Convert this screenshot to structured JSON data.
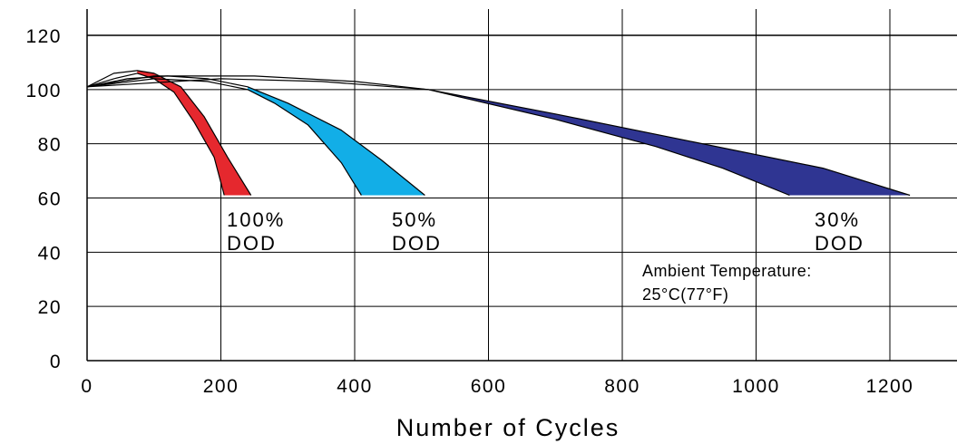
{
  "chart_data": {
    "type": "area",
    "xlabel": "Number of Cycles",
    "ylabel": "",
    "xlim": [
      0,
      1300
    ],
    "ylim": [
      0,
      120
    ],
    "x_ticks": [
      "0",
      "200",
      "400",
      "600",
      "800",
      "1000",
      "1200"
    ],
    "y_ticks": [
      "0",
      "20",
      "40",
      "60",
      "80",
      "100",
      "120"
    ],
    "grid": true,
    "series": [
      {
        "name": "100% DOD",
        "label_lines": [
          "100%",
          "DOD"
        ],
        "color": "#e5282e",
        "upper": [
          [
            0,
            101
          ],
          [
            40,
            106
          ],
          [
            75,
            107
          ],
          [
            100,
            106
          ],
          [
            140,
            101
          ],
          [
            175,
            90
          ],
          [
            210,
            75
          ],
          [
            245,
            61
          ]
        ],
        "lower": [
          [
            0,
            101
          ],
          [
            40,
            104
          ],
          [
            75,
            106
          ],
          [
            100,
            104
          ],
          [
            130,
            99
          ],
          [
            160,
            88
          ],
          [
            190,
            75
          ],
          [
            205,
            61
          ]
        ],
        "fill_from_x": 75,
        "bottom": [
          205,
          275
        ]
      },
      {
        "name": "50% DOD",
        "label_lines": [
          "50%",
          "DOD"
        ],
        "color": "#12aee7",
        "upper": [
          [
            0,
            101
          ],
          [
            60,
            104
          ],
          [
            120,
            105
          ],
          [
            180,
            104
          ],
          [
            240,
            101
          ],
          [
            300,
            95
          ],
          [
            380,
            85
          ],
          [
            440,
            74
          ],
          [
            505,
            61
          ]
        ],
        "lower": [
          [
            0,
            101
          ],
          [
            100,
            104
          ],
          [
            180,
            103
          ],
          [
            240,
            100
          ],
          [
            280,
            95
          ],
          [
            330,
            87
          ],
          [
            380,
            73
          ],
          [
            410,
            61
          ]
        ],
        "fill_from_x": 240,
        "bottom": [
          410,
          505
        ]
      },
      {
        "name": "30% DOD",
        "label_lines": [
          "30%",
          "DOD"
        ],
        "color": "#2f3592",
        "upper": [
          [
            0,
            101
          ],
          [
            100,
            105
          ],
          [
            250,
            105
          ],
          [
            400,
            103
          ],
          [
            510,
            100
          ],
          [
            700,
            91
          ],
          [
            900,
            81
          ],
          [
            1100,
            71
          ],
          [
            1230,
            61
          ]
        ],
        "lower": [
          [
            0,
            101
          ],
          [
            200,
            104
          ],
          [
            350,
            103
          ],
          [
            510,
            100
          ],
          [
            700,
            89
          ],
          [
            850,
            79
          ],
          [
            950,
            71
          ],
          [
            1050,
            61
          ]
        ],
        "fill_from_x": 510,
        "bottom": [
          1050,
          1230
        ]
      }
    ],
    "annotation_lines": [
      "Ambient Temperature:",
      "25°C(77°F)"
    ]
  }
}
